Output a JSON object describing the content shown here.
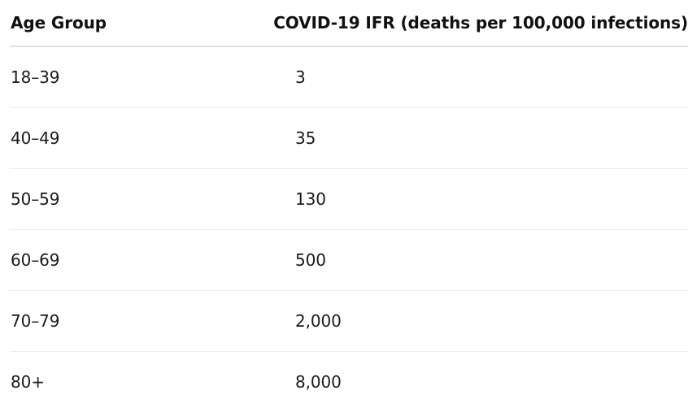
{
  "table": {
    "headers": [
      "Age Group",
      "COVID-19 IFR (deaths per 100,000 infections)"
    ],
    "rows": [
      [
        "18–39",
        "3"
      ],
      [
        "40–49",
        "35"
      ],
      [
        "50–59",
        "130"
      ],
      [
        "60–69",
        "500"
      ],
      [
        "70–79",
        "2,000"
      ],
      [
        "80+",
        "8,000"
      ]
    ]
  }
}
